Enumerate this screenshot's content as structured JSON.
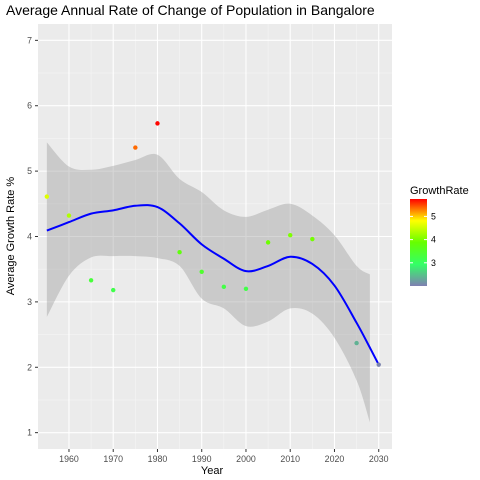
{
  "chart_data": {
    "type": "scatter",
    "title": "Average Annual Rate of Change of Population in Bangalore",
    "xlabel": "Year",
    "ylabel": "Average Growth Rate %",
    "xlim": [
      1953,
      2033
    ],
    "ylim": [
      0.75,
      7.25
    ],
    "x_ticks": [
      1960,
      1970,
      1980,
      1990,
      2000,
      2010,
      2020,
      2030
    ],
    "y_ticks": [
      1,
      2,
      3,
      4,
      5,
      6,
      7
    ],
    "grid": true,
    "legend_position": "right",
    "background": "#ebebeb",
    "points": [
      {
        "x": 1955,
        "y": 4.61
      },
      {
        "x": 1960,
        "y": 4.32
      },
      {
        "x": 1965,
        "y": 3.33
      },
      {
        "x": 1970,
        "y": 3.18
      },
      {
        "x": 1975,
        "y": 5.36
      },
      {
        "x": 1980,
        "y": 5.73
      },
      {
        "x": 1985,
        "y": 3.76
      },
      {
        "x": 1990,
        "y": 3.46
      },
      {
        "x": 1995,
        "y": 3.23
      },
      {
        "x": 2000,
        "y": 3.2
      },
      {
        "x": 2005,
        "y": 3.91
      },
      {
        "x": 2010,
        "y": 4.02
      },
      {
        "x": 2015,
        "y": 3.96
      },
      {
        "x": 2025,
        "y": 2.37
      },
      {
        "x": 2030,
        "y": 2.04
      }
    ],
    "smooth": {
      "color": "#0000ff",
      "band_color": "#999999",
      "x": [
        1955,
        1960,
        1965,
        1970,
        1975,
        1980,
        1985,
        1990,
        1995,
        2000,
        2005,
        2010,
        2015,
        2020,
        2025,
        2028,
        2030
      ],
      "y": [
        4.09,
        4.22,
        4.35,
        4.4,
        4.47,
        4.45,
        4.2,
        3.88,
        3.66,
        3.47,
        3.55,
        3.69,
        3.58,
        3.25,
        2.68,
        2.3,
        2.04
      ],
      "lower": [
        2.77,
        3.4,
        3.68,
        3.7,
        3.7,
        3.67,
        3.55,
        3.05,
        2.9,
        2.63,
        2.7,
        2.9,
        2.82,
        2.45,
        1.8,
        1.16,
        null
      ],
      "upper": [
        5.44,
        5.07,
        5.02,
        5.08,
        5.17,
        5.25,
        4.88,
        4.68,
        4.4,
        4.3,
        4.41,
        4.5,
        4.32,
        4.02,
        3.55,
        3.42,
        null
      ]
    },
    "legend": {
      "title": "GrowthRate",
      "labels": [
        "5",
        "4",
        "3"
      ],
      "label_values": [
        5,
        4,
        3
      ],
      "range": [
        2.0,
        5.75
      ],
      "colors": [
        "#7f7fb2",
        "#33ff66",
        "#66ff00",
        "#ffff00",
        "#ff0000"
      ]
    }
  }
}
